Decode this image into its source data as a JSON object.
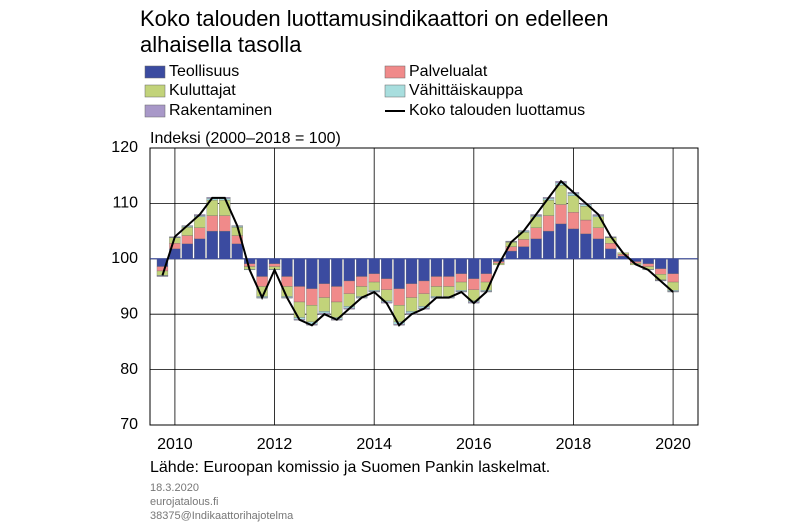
{
  "chart_data": {
    "type": "bar",
    "title": "Koko talouden luottamusindikaattori on edelleen alhaisella tasolla",
    "y_label": "Indeksi (2000–2018 = 100)",
    "source": "Lähde: Euroopan komissio ja Suomen Pankin laskelmat.",
    "footer": [
      "18.3.2020",
      "eurojatalous.fi",
      "38375@Indikaattorihajotelma"
    ],
    "baseline": 100,
    "xlim": [
      2009.5,
      2020.5
    ],
    "xticks": [
      2010,
      2012,
      2014,
      2016,
      2018,
      2020
    ],
    "ylim": [
      70,
      120
    ],
    "yticks": [
      70,
      80,
      90,
      100,
      110,
      120
    ],
    "grid": true,
    "x": [
      2009.75,
      2010,
      2010.25,
      2010.5,
      2010.75,
      2011,
      2011.25,
      2011.5,
      2011.75,
      2012,
      2012.25,
      2012.5,
      2012.75,
      2013,
      2013.25,
      2013.5,
      2013.75,
      2014,
      2014.25,
      2014.5,
      2014.75,
      2015,
      2015.25,
      2015.5,
      2015.75,
      2016,
      2016.25,
      2016.5,
      2016.75,
      2017,
      2017.25,
      2017.5,
      2017.75,
      2018,
      2018.25,
      2018.5,
      2018.75,
      2019,
      2019.25,
      2019.5,
      2019.75,
      2020
    ],
    "series": [
      {
        "name": "Teollisuus",
        "color": "#3b4ba0",
        "values": [
          -1.4,
          1.8,
          2.7,
          3.6,
          5,
          5,
          2.7,
          -0.9,
          -3.2,
          -0.9,
          -3.2,
          -5,
          -5.4,
          -4.5,
          -5,
          -4,
          -3.2,
          -2.7,
          -3.6,
          -5.4,
          -4.5,
          -4,
          -3.2,
          -3.2,
          -2.7,
          -3.6,
          -2.7,
          -0.5,
          1.4,
          2.2,
          3.6,
          5,
          6.3,
          5.4,
          4.5,
          3.6,
          1.8,
          0.5,
          -0.5,
          -0.9,
          -1.8,
          -2.7
        ]
      },
      {
        "name": "Palvelualat",
        "color": "#f08a8a",
        "values": [
          -0.8,
          1,
          1.5,
          2,
          2.8,
          2.8,
          1.5,
          -0.5,
          -1.8,
          -0.5,
          -1.8,
          -2.8,
          -3,
          -2.5,
          -2.8,
          -2.3,
          -1.8,
          -1.5,
          -2,
          -3,
          -2.5,
          -2.3,
          -1.8,
          -1.8,
          -1.5,
          -2,
          -1.5,
          -0.3,
          0.8,
          1.3,
          2,
          2.8,
          3.5,
          3,
          2.5,
          2,
          1,
          0.3,
          -0.3,
          -0.5,
          -1,
          -1.5
        ]
      },
      {
        "name": "Kuluttajat",
        "color": "#c2d37a",
        "values": [
          -0.8,
          1,
          1.5,
          2,
          2.8,
          2.8,
          1.5,
          -0.5,
          -1.8,
          -0.5,
          -1.8,
          -2.8,
          -3,
          -2.5,
          -2.8,
          -2.3,
          -1.8,
          -1.5,
          -2,
          -3,
          -2.5,
          -2.3,
          -1.8,
          -1.8,
          -1.5,
          -2,
          -1.5,
          -0.3,
          0.8,
          1.3,
          2,
          2.8,
          3.5,
          3,
          2.5,
          2,
          1,
          0.3,
          -0.3,
          -0.5,
          -1,
          -1.5
        ]
      },
      {
        "name": "Vähittäiskauppa",
        "color": "#a8dede",
        "values": [
          -0.1,
          0.1,
          0.2,
          0.2,
          0.3,
          0.3,
          0.2,
          -0.1,
          -0.2,
          -0.1,
          -0.2,
          -0.3,
          -0.4,
          -0.3,
          -0.3,
          -0.3,
          -0.2,
          -0.2,
          -0.2,
          -0.4,
          -0.3,
          -0.3,
          -0.2,
          -0.2,
          -0.2,
          -0.2,
          -0.2,
          0,
          0.1,
          0.2,
          0.2,
          0.3,
          0.4,
          0.4,
          0.3,
          0.2,
          0.1,
          0,
          0,
          -0.1,
          -0.1,
          -0.2
        ]
      },
      {
        "name": "Rakentaminen",
        "color": "#a898c8",
        "values": [
          -0.1,
          0.1,
          0.1,
          0.2,
          0.2,
          0.2,
          0.1,
          0,
          -0.1,
          0,
          -0.1,
          -0.2,
          -0.2,
          -0.2,
          -0.2,
          -0.2,
          -0.1,
          -0.1,
          -0.2,
          -0.2,
          -0.2,
          -0.2,
          -0.1,
          -0.1,
          -0.1,
          -0.2,
          -0.1,
          0,
          0.1,
          0.1,
          0.2,
          0.2,
          0.3,
          0.2,
          0.2,
          0.2,
          0.1,
          0,
          0,
          0,
          -0.1,
          -0.1
        ]
      },
      {
        "name": "Koko talouden luottamus",
        "color": "#000000",
        "line": true,
        "values": [
          97,
          104,
          106,
          108,
          111,
          111,
          106,
          98,
          93,
          98,
          93,
          89,
          88,
          90,
          89,
          91,
          93,
          94,
          92,
          88,
          90,
          91,
          93,
          93,
          94,
          92,
          94,
          99,
          103,
          105,
          108,
          111,
          114,
          112,
          110,
          108,
          104,
          101,
          99,
          98,
          96,
          94
        ]
      }
    ]
  }
}
